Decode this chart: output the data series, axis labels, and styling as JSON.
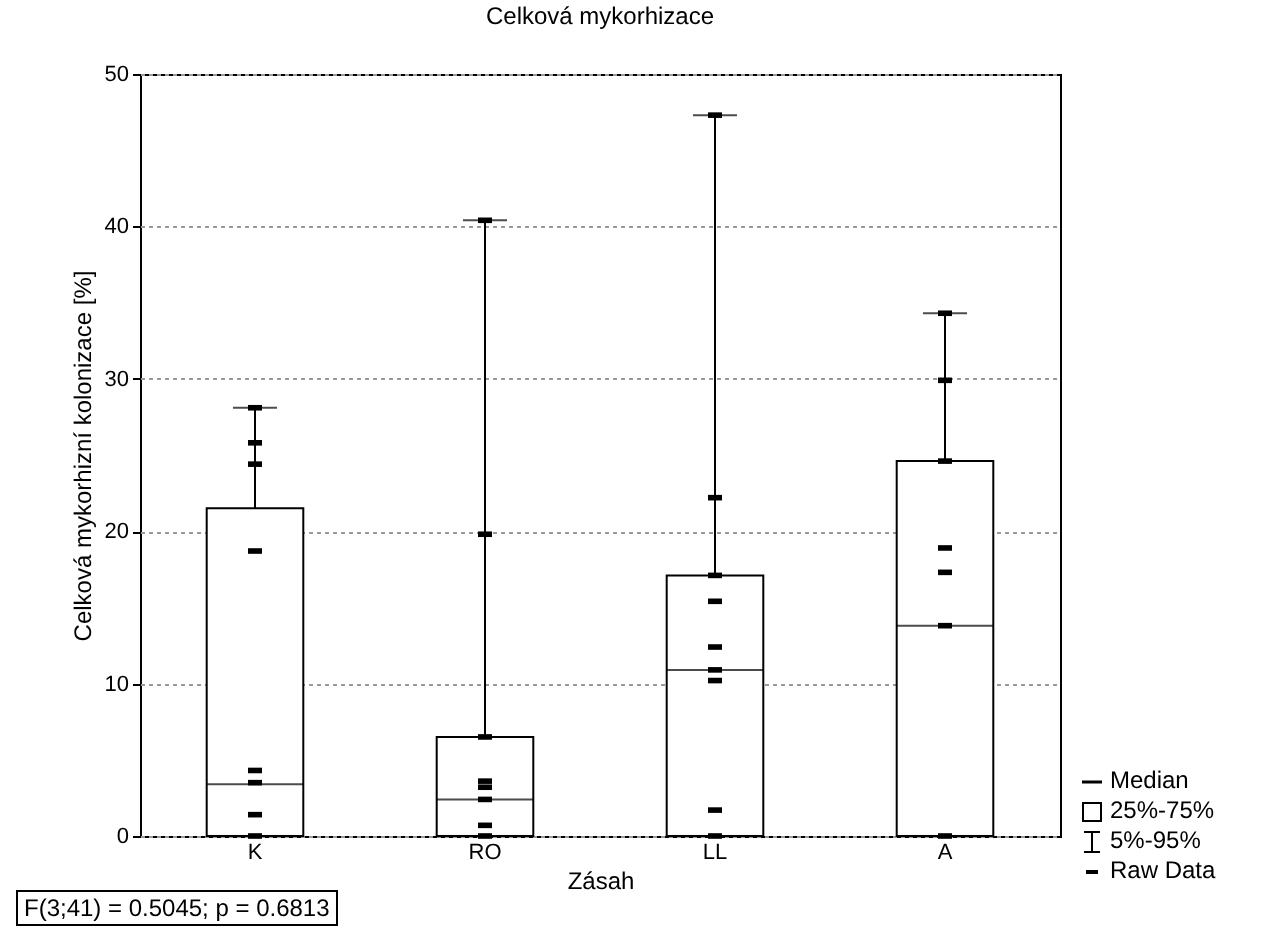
{
  "chart_data": {
    "type": "box",
    "title": "Celková mykorhizace",
    "xlabel": "Zásah",
    "ylabel": "Celková mykorhizní kolonizace [%]",
    "categories": [
      "K",
      "RO",
      "LL",
      "A"
    ],
    "boxes": [
      {
        "low": 0,
        "q1": 0,
        "median": 3.4,
        "q3": 21.5,
        "high": 28.1
      },
      {
        "low": 0,
        "q1": 0,
        "median": 2.4,
        "q3": 6.5,
        "high": 40.4
      },
      {
        "low": 0,
        "q1": 0,
        "median": 10.9,
        "q3": 17.1,
        "high": 47.3
      },
      {
        "low": 0,
        "q1": 0,
        "median": 13.8,
        "q3": 24.6,
        "high": 34.3
      }
    ],
    "series": [
      {
        "name": "Raw Data",
        "type": "scatter",
        "color": "#000000",
        "x": [
          "K",
          "K",
          "K",
          "K",
          "K",
          "K",
          "K",
          "K",
          "K",
          "RO",
          "RO",
          "RO",
          "RO",
          "RO",
          "RO",
          "RO",
          "RO",
          "LL",
          "LL",
          "LL",
          "LL",
          "LL",
          "LL",
          "LL",
          "LL",
          "LL",
          "A",
          "A",
          "A",
          "A",
          "A",
          "A",
          "A"
        ],
        "values": [
          28.1,
          25.8,
          24.4,
          18.7,
          4.3,
          3.5,
          null,
          1.4,
          0,
          40.4,
          19.8,
          6.5,
          3.6,
          3.2,
          2.4,
          0.7,
          0,
          47.3,
          22.2,
          17.1,
          15.4,
          12.4,
          10.9,
          10.2,
          1.7,
          0,
          34.3,
          29.9,
          24.6,
          18.9,
          17.3,
          13.8,
          0
        ]
      }
    ],
    "ylim": [
      0,
      50
    ],
    "yticks": [
      0,
      10,
      20,
      30,
      40,
      50
    ],
    "grid": "y",
    "legend": "bottom right",
    "annotations": [
      "Median",
      "25%-75%",
      "5%-95%",
      "F(3;41) = 0.5045; p = 0.6813"
    ]
  }
}
